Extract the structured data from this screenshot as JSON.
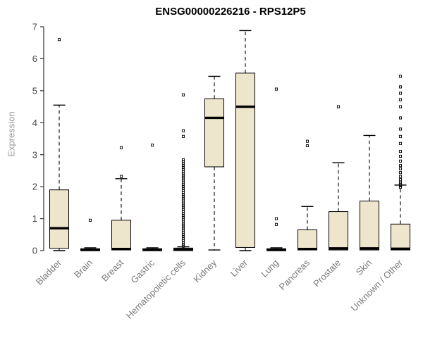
{
  "chart_data": {
    "type": "boxplot",
    "title": "ENSG00000226216 - RPS12P5",
    "ylabel": "Expression",
    "ylim": [
      0,
      7
    ],
    "yticks": [
      0,
      1,
      2,
      3,
      4,
      5,
      6,
      7
    ],
    "grid": false,
    "legend": "none",
    "box_fill": "#ede6cc",
    "box_stroke": "#000000",
    "axis_color": "#333333",
    "ytick_label_color": "#4a4a4a",
    "xtick_label_color": "#7a7a7a",
    "categories": [
      "Bladder",
      "Brain",
      "Breast",
      "Gastric",
      "Hematopoietic cells",
      "Kidney",
      "Liver",
      "Lung",
      "Pancreas",
      "Prostate",
      "Skin",
      "Unknown / Other"
    ],
    "series": [
      {
        "name": "Bladder",
        "lo": 0.0,
        "q1": 0.07,
        "median": 0.7,
        "q3": 1.9,
        "hi": 4.55,
        "outliers": [
          6.6
        ]
      },
      {
        "name": "Brain",
        "lo": 0.0,
        "q1": 0.0,
        "median": 0.02,
        "q3": 0.06,
        "hi": 0.09,
        "outliers": [
          0.95
        ]
      },
      {
        "name": "Breast",
        "lo": 0.0,
        "q1": 0.02,
        "median": 0.05,
        "q3": 0.95,
        "hi": 2.25,
        "outliers": [
          2.32,
          3.22
        ]
      },
      {
        "name": "Gastric",
        "lo": 0.0,
        "q1": 0.0,
        "median": 0.02,
        "q3": 0.06,
        "hi": 0.09,
        "outliers": [
          3.3
        ]
      },
      {
        "name": "Hematopoietic cells",
        "lo": 0.0,
        "q1": 0.0,
        "median": 0.03,
        "q3": 0.08,
        "hi": 0.12,
        "outliers": [
          0.14,
          0.2,
          0.26,
          0.32,
          0.38,
          0.44,
          0.5,
          0.56,
          0.62,
          0.68,
          0.74,
          0.8,
          0.86,
          0.92,
          0.98,
          1.04,
          1.1,
          1.16,
          1.22,
          1.28,
          1.34,
          1.4,
          1.46,
          1.52,
          1.58,
          1.64,
          1.7,
          1.76,
          1.82,
          1.88,
          1.94,
          2.0,
          2.06,
          2.12,
          2.18,
          2.24,
          2.3,
          2.36,
          2.42,
          2.48,
          2.54,
          2.6,
          2.66,
          2.72,
          2.78,
          2.84,
          3.57,
          3.75,
          4.87
        ]
      },
      {
        "name": "Kidney",
        "lo": 0.02,
        "q1": 2.62,
        "median": 4.15,
        "q3": 4.75,
        "hi": 5.45,
        "outliers": []
      },
      {
        "name": "Liver",
        "lo": 0.0,
        "q1": 0.1,
        "median": 4.5,
        "q3": 5.55,
        "hi": 6.88,
        "outliers": []
      },
      {
        "name": "Lung",
        "lo": 0.0,
        "q1": 0.0,
        "median": 0.02,
        "q3": 0.06,
        "hi": 0.09,
        "outliers": [
          0.82,
          1.0,
          5.05
        ]
      },
      {
        "name": "Pancreas",
        "lo": 0.0,
        "q1": 0.02,
        "median": 0.05,
        "q3": 0.65,
        "hi": 1.38,
        "outliers": [
          3.28,
          3.42
        ]
      },
      {
        "name": "Prostate",
        "lo": 0.0,
        "q1": 0.02,
        "median": 0.07,
        "q3": 1.22,
        "hi": 2.75,
        "outliers": [
          4.5
        ]
      },
      {
        "name": "Skin",
        "lo": 0.0,
        "q1": 0.02,
        "median": 0.07,
        "q3": 1.55,
        "hi": 3.6,
        "outliers": []
      },
      {
        "name": "Unknown / Other",
        "lo": 0.0,
        "q1": 0.02,
        "median": 0.06,
        "q3": 0.83,
        "hi": 2.05,
        "outliers": [
          1.98,
          2.03,
          2.08,
          2.14,
          2.22,
          2.32,
          2.44,
          2.56,
          2.66,
          2.8,
          2.95,
          3.1,
          3.35,
          3.57,
          3.8,
          4.15,
          4.5,
          4.72,
          4.92,
          5.12,
          5.45
        ]
      }
    ]
  }
}
